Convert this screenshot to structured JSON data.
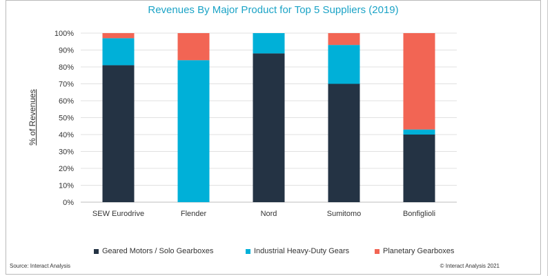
{
  "title": "Revenues By Major Product for Top 5 Suppliers (2019)",
  "source": "Source: Interact Analysis",
  "copyright": "© Interact Analysis 2021",
  "colors": {
    "geared": "#243344",
    "industrial": "#00b0d8",
    "planetary": "#f26554",
    "grid": "#e0e0e0",
    "title": "#1ba3c6"
  },
  "chart_data": {
    "type": "bar",
    "stacked": true,
    "title": "Revenues By Major Product for Top 5 Suppliers (2019)",
    "xlabel": "",
    "ylabel": "% of Revenues",
    "ylim": [
      0,
      100
    ],
    "yticks": [
      "0%",
      "10%",
      "20%",
      "30%",
      "40%",
      "50%",
      "60%",
      "70%",
      "80%",
      "90%",
      "100%"
    ],
    "grid": true,
    "legend_position": "bottom",
    "categories": [
      "SEW Eurodrive",
      "Flender",
      "Nord",
      "Sumitomo",
      "Bonfiglioli"
    ],
    "series": [
      {
        "name": "Geared Motors / Solo Gearboxes",
        "color": "#243344",
        "values": [
          81,
          0,
          88,
          70,
          40
        ]
      },
      {
        "name": "Industrial Heavy-Duty Gears",
        "color": "#00b0d8",
        "values": [
          16,
          84,
          12,
          23,
          3
        ]
      },
      {
        "name": "Planetary Gearboxes",
        "color": "#f26554",
        "values": [
          3,
          16,
          0,
          7,
          57
        ]
      }
    ]
  }
}
